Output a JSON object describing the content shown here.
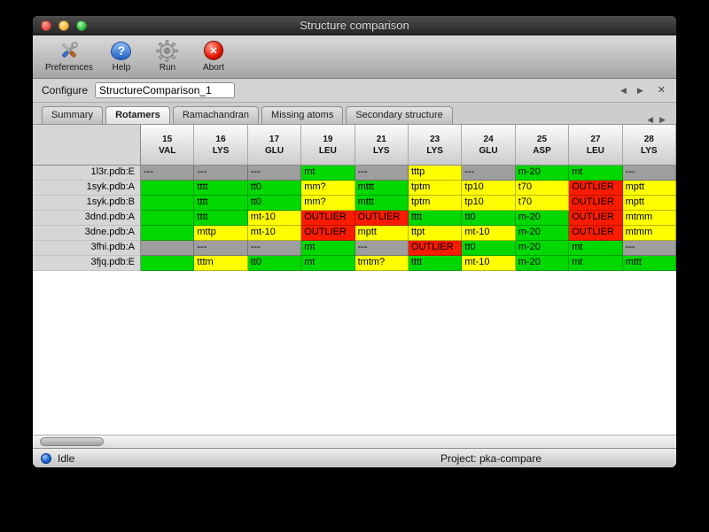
{
  "window": {
    "title": "Structure comparison"
  },
  "toolbar": {
    "items": [
      {
        "name": "preferences",
        "label": "Preferences"
      },
      {
        "name": "help",
        "label": "Help"
      },
      {
        "name": "run",
        "label": "Run"
      },
      {
        "name": "abort",
        "label": "Abort"
      }
    ]
  },
  "configure": {
    "label": "Configure",
    "value": "StructureComparison_1"
  },
  "tabs": {
    "items": [
      {
        "label": "Summary",
        "active": false
      },
      {
        "label": "Rotamers",
        "active": true
      },
      {
        "label": "Ramachandran",
        "active": false
      },
      {
        "label": "Missing atoms",
        "active": false
      },
      {
        "label": "Secondary structure",
        "active": false
      }
    ]
  },
  "icons": {
    "prev": "◀",
    "next": "▶",
    "close": "✕",
    "help": "?",
    "abort": "✕"
  },
  "table": {
    "columns": [
      {
        "num": "15",
        "res": "VAL"
      },
      {
        "num": "16",
        "res": "LYS"
      },
      {
        "num": "17",
        "res": "GLU"
      },
      {
        "num": "19",
        "res": "LEU"
      },
      {
        "num": "21",
        "res": "LYS"
      },
      {
        "num": "23",
        "res": "LYS"
      },
      {
        "num": "24",
        "res": "GLU"
      },
      {
        "num": "25",
        "res": "ASP"
      },
      {
        "num": "27",
        "res": "LEU"
      },
      {
        "num": "28",
        "res": "LYS"
      }
    ],
    "rows": [
      {
        "label": "1l3r.pdb:E",
        "cells": [
          {
            "text": "---",
            "color": "gray"
          },
          {
            "text": "---",
            "color": "gray"
          },
          {
            "text": "---",
            "color": "gray"
          },
          {
            "text": "mt",
            "color": "green"
          },
          {
            "text": "---",
            "color": "gray"
          },
          {
            "text": "tttp",
            "color": "yellow"
          },
          {
            "text": "---",
            "color": "gray"
          },
          {
            "text": "m-20",
            "color": "green"
          },
          {
            "text": "mt",
            "color": "green"
          },
          {
            "text": "---",
            "color": "gray"
          }
        ]
      },
      {
        "label": "1syk.pdb:A",
        "cells": [
          {
            "text": "",
            "color": "green"
          },
          {
            "text": "tttt",
            "color": "green"
          },
          {
            "text": "tt0",
            "color": "green"
          },
          {
            "text": "mm?",
            "color": "yellow"
          },
          {
            "text": "mttt",
            "color": "green"
          },
          {
            "text": "tptm",
            "color": "yellow"
          },
          {
            "text": "tp10",
            "color": "yellow"
          },
          {
            "text": "t70",
            "color": "yellow"
          },
          {
            "text": "OUTLIER",
            "color": "red"
          },
          {
            "text": "mptt",
            "color": "yellow"
          }
        ]
      },
      {
        "label": "1syk.pdb:B",
        "cells": [
          {
            "text": "",
            "color": "green"
          },
          {
            "text": "tttt",
            "color": "green"
          },
          {
            "text": "tt0",
            "color": "green"
          },
          {
            "text": "mm?",
            "color": "yellow"
          },
          {
            "text": "mttt",
            "color": "green"
          },
          {
            "text": "tptm",
            "color": "yellow"
          },
          {
            "text": "tp10",
            "color": "yellow"
          },
          {
            "text": "t70",
            "color": "yellow"
          },
          {
            "text": "OUTLIER",
            "color": "red"
          },
          {
            "text": "mptt",
            "color": "yellow"
          }
        ]
      },
      {
        "label": "3dnd.pdb:A",
        "cells": [
          {
            "text": "",
            "color": "green"
          },
          {
            "text": "tttt",
            "color": "green"
          },
          {
            "text": "mt-10",
            "color": "yellow"
          },
          {
            "text": "OUTLIER",
            "color": "red"
          },
          {
            "text": "OUTLIER",
            "color": "red"
          },
          {
            "text": "tttt",
            "color": "green"
          },
          {
            "text": "tt0",
            "color": "green"
          },
          {
            "text": "m-20",
            "color": "green"
          },
          {
            "text": "OUTLIER",
            "color": "red"
          },
          {
            "text": "mtmm",
            "color": "yellow"
          }
        ]
      },
      {
        "label": "3dne.pdb:A",
        "cells": [
          {
            "text": "",
            "color": "green"
          },
          {
            "text": "mttp",
            "color": "yellow"
          },
          {
            "text": "mt-10",
            "color": "yellow"
          },
          {
            "text": "OUTLIER",
            "color": "red"
          },
          {
            "text": "mptt",
            "color": "yellow"
          },
          {
            "text": "ttpt",
            "color": "yellow"
          },
          {
            "text": "mt-10",
            "color": "yellow"
          },
          {
            "text": "m-20",
            "color": "green"
          },
          {
            "text": "OUTLIER",
            "color": "red"
          },
          {
            "text": "mtmm",
            "color": "yellow"
          }
        ]
      },
      {
        "label": "3fhi.pdb:A",
        "cells": [
          {
            "text": "",
            "color": "gray"
          },
          {
            "text": "---",
            "color": "gray"
          },
          {
            "text": "---",
            "color": "gray"
          },
          {
            "text": "mt",
            "color": "green"
          },
          {
            "text": "---",
            "color": "gray"
          },
          {
            "text": "OUTLIER",
            "color": "red"
          },
          {
            "text": "tt0",
            "color": "green"
          },
          {
            "text": "m-20",
            "color": "green"
          },
          {
            "text": "mt",
            "color": "green"
          },
          {
            "text": "---",
            "color": "gray"
          }
        ]
      },
      {
        "label": "3fjq.pdb:E",
        "cells": [
          {
            "text": "",
            "color": "green"
          },
          {
            "text": "tttm",
            "color": "yellow"
          },
          {
            "text": "tt0",
            "color": "green"
          },
          {
            "text": "mt",
            "color": "green"
          },
          {
            "text": "tmtm?",
            "color": "yellow"
          },
          {
            "text": "tttt",
            "color": "green"
          },
          {
            "text": "mt-10",
            "color": "yellow"
          },
          {
            "text": "m-20",
            "color": "green"
          },
          {
            "text": "mt",
            "color": "green"
          },
          {
            "text": "mttt",
            "color": "green"
          }
        ]
      }
    ]
  },
  "statusbar": {
    "status": "Idle",
    "project": "Project: pka-compare"
  },
  "colors": {
    "green": "#00d800",
    "yellow": "#ffff00",
    "red": "#fb1b00",
    "gray": "#9e9e9e"
  }
}
